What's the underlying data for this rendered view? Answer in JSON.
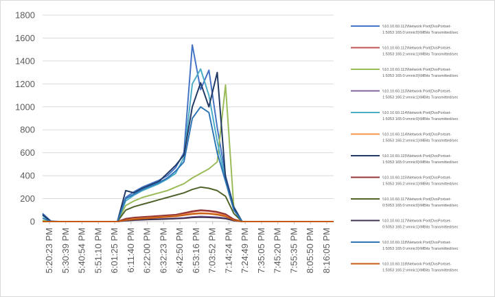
{
  "chart_data": {
    "type": "line",
    "title": "",
    "xlabel": "",
    "ylabel": "",
    "ylim": [
      0,
      1800
    ],
    "yticks": [
      0,
      200,
      400,
      600,
      800,
      1000,
      1200,
      1400,
      1600,
      1800
    ],
    "grid": true,
    "legend_position": "right",
    "x_tick_labels": [
      "5:20:23 PM",
      "5:30:39 PM",
      "5:40:54 PM",
      "5:51:10 PM",
      "6:01:25 PM",
      "6:11:40 PM",
      "6:22:00 PM",
      "6:32:23 PM",
      "6:42:50 PM",
      "6:53:16 PM",
      "7:03:52 PM",
      "7:14:24 PM",
      "7:24:49 PM",
      "7:35:05 PM",
      "7:45:20 PM",
      "7:55:35 PM",
      "8:05:50 PM",
      "8:16:05 PM"
    ],
    "x": [
      "5:20:23 PM",
      "5:25:31 PM",
      "5:30:39 PM",
      "5:35:46 PM",
      "5:40:54 PM",
      "5:46:02 PM",
      "5:51:10 PM",
      "5:56:17 PM",
      "6:01:25 PM",
      "6:06:32 PM",
      "6:11:40 PM",
      "6:16:50 PM",
      "6:22:00 PM",
      "6:27:11 PM",
      "6:32:23 PM",
      "6:37:36 PM",
      "6:42:50 PM",
      "6:48:03 PM",
      "6:53:16 PM",
      "6:58:34 PM",
      "7:03:52 PM",
      "7:09:08 PM",
      "7:14:24 PM",
      "7:19:36 PM",
      "7:24:49 PM",
      "7:29:57 PM",
      "7:35:05 PM",
      "7:40:12 PM",
      "7:45:20 PM",
      "7:50:27 PM",
      "7:55:35 PM",
      "8:00:42 PM",
      "8:05:50 PM",
      "8:10:57 PM",
      "8:16:05 PM",
      "8:21:12 PM"
    ],
    "series": [
      {
        "name": "\\\\10.10.60.112\\Network Port(DvsPortset-1:5053 165:0:vmnic0)\\MBits Transmitted/sec",
        "color": "#4472c4",
        "values": [
          70,
          5,
          0,
          0,
          0,
          0,
          0,
          0,
          0,
          0,
          210,
          260,
          300,
          330,
          360,
          400,
          470,
          600,
          1540,
          1150,
          1320,
          820,
          400,
          130,
          0,
          0,
          0,
          0,
          0,
          0,
          0,
          0,
          0,
          0,
          0,
          0
        ]
      },
      {
        "name": "\\\\10.10.60.112\\Network Port(DvsPortset-1:5053 165:2:vmnic1)\\MBits Transmitted/sec",
        "color": "#c0504d",
        "values": [
          0,
          0,
          0,
          0,
          0,
          0,
          0,
          0,
          0,
          0,
          20,
          30,
          35,
          40,
          45,
          50,
          55,
          70,
          85,
          95,
          90,
          80,
          60,
          20,
          0,
          0,
          0,
          0,
          0,
          0,
          0,
          0,
          0,
          0,
          0,
          0
        ]
      },
      {
        "name": "\\\\10.10.60.113\\Network Port(DvsPortset-1:5053 165:0:vmnic0)\\MBits Transmitted/sec",
        "color": "#9bbb59",
        "values": [
          10,
          0,
          0,
          0,
          0,
          0,
          0,
          0,
          0,
          0,
          140,
          180,
          210,
          230,
          250,
          270,
          300,
          330,
          380,
          420,
          460,
          520,
          1190,
          120,
          0,
          0,
          0,
          0,
          0,
          0,
          0,
          0,
          0,
          0,
          0,
          0
        ]
      },
      {
        "name": "\\\\10.10.60.113\\Network Port(DvsPortset-1:5053 165:2:vmnic1)\\MBits Transmitted/sec",
        "color": "#8064a2",
        "values": [
          0,
          0,
          0,
          0,
          0,
          0,
          0,
          0,
          0,
          0,
          10,
          15,
          18,
          20,
          22,
          25,
          28,
          32,
          40,
          45,
          42,
          38,
          30,
          10,
          0,
          0,
          0,
          0,
          0,
          0,
          0,
          0,
          0,
          0,
          0,
          0
        ]
      },
      {
        "name": "\\\\10.10.60.114\\Network Port(DvsPortset-1:5053 165:0:vmnic0)\\MBits Transmitted/sec",
        "color": "#4bacc6",
        "values": [
          50,
          0,
          0,
          0,
          0,
          0,
          0,
          0,
          0,
          0,
          180,
          230,
          270,
          300,
          330,
          370,
          420,
          560,
          1200,
          1330,
          1100,
          700,
          360,
          110,
          0,
          0,
          0,
          0,
          0,
          0,
          0,
          0,
          0,
          0,
          0,
          0
        ]
      },
      {
        "name": "\\\\10.10.60.114\\Network Port(DvsPortset-1:5053 165:2:vmnic1)\\MBits Transmitted/sec",
        "color": "#f79646",
        "values": [
          0,
          0,
          0,
          0,
          0,
          0,
          0,
          0,
          0,
          0,
          15,
          25,
          30,
          35,
          40,
          45,
          50,
          60,
          70,
          75,
          72,
          65,
          50,
          15,
          0,
          0,
          0,
          0,
          0,
          0,
          0,
          0,
          0,
          0,
          0,
          0
        ]
      },
      {
        "name": "\\\\10.10.60.115\\Network Port(DvsPortset-1:5053 165:0:vmnic0)\\MBits Transmitted/sec",
        "color": "#1f3864",
        "values": [
          60,
          0,
          0,
          0,
          0,
          0,
          0,
          0,
          0,
          0,
          270,
          250,
          290,
          320,
          350,
          420,
          490,
          580,
          1000,
          1210,
          1000,
          1300,
          380,
          120,
          0,
          0,
          0,
          0,
          0,
          0,
          0,
          0,
          0,
          0,
          0,
          0
        ]
      },
      {
        "name": "\\\\10.10.60.115\\Network Port(DvsPortset-1:5053 165:2:vmnic1)\\MBits Transmitted/sec",
        "color": "#943634",
        "values": [
          0,
          0,
          0,
          0,
          0,
          0,
          0,
          0,
          0,
          0,
          25,
          35,
          40,
          45,
          50,
          55,
          60,
          75,
          90,
          100,
          95,
          85,
          65,
          20,
          0,
          0,
          0,
          0,
          0,
          0,
          0,
          0,
          0,
          0,
          0,
          0
        ]
      },
      {
        "name": "\\\\10.10.60.117\\Network Port(DvsPortset-0:5053 165:0:vmnic0)\\MBits Transmitted/sec",
        "color": "#4f6228",
        "values": [
          0,
          0,
          0,
          0,
          0,
          0,
          0,
          0,
          0,
          0,
          100,
          130,
          150,
          170,
          190,
          210,
          230,
          250,
          280,
          300,
          290,
          270,
          220,
          70,
          0,
          0,
          0,
          0,
          0,
          0,
          0,
          0,
          0,
          0,
          0,
          0
        ]
      },
      {
        "name": "\\\\10.10.60.117\\Network Port(DvsPortset-0:5053 165:2:vmnic1)\\MBits Transmitted/sec",
        "color": "#3f3151",
        "values": [
          0,
          0,
          0,
          0,
          0,
          0,
          0,
          0,
          0,
          0,
          8,
          12,
          15,
          18,
          20,
          22,
          25,
          28,
          35,
          38,
          36,
          32,
          25,
          8,
          0,
          0,
          0,
          0,
          0,
          0,
          0,
          0,
          0,
          0,
          0,
          0
        ]
      },
      {
        "name": "\\\\10.10.60.118\\Network Port(DvsPortset-1:5053 165:0:vmnic0)\\MBits Transmitted/sec",
        "color": "#2e75b6",
        "values": [
          30,
          0,
          0,
          0,
          0,
          0,
          0,
          0,
          0,
          0,
          200,
          240,
          280,
          310,
          340,
          380,
          440,
          520,
          900,
          1000,
          950,
          600,
          350,
          100,
          0,
          0,
          0,
          0,
          0,
          0,
          0,
          0,
          0,
          0,
          0,
          0
        ]
      },
      {
        "name": "\\\\10.10.60.118\\Network Port(DvsPortset-1:5053 165:2:vmnic1)\\MBits Transmitted/sec",
        "color": "#c55a11",
        "values": [
          0,
          0,
          0,
          0,
          0,
          0,
          0,
          0,
          0,
          0,
          12,
          20,
          25,
          30,
          35,
          40,
          45,
          55,
          65,
          70,
          68,
          60,
          45,
          12,
          0,
          0,
          0,
          0,
          0,
          0,
          0,
          0,
          0,
          0,
          0,
          0
        ]
      }
    ]
  }
}
